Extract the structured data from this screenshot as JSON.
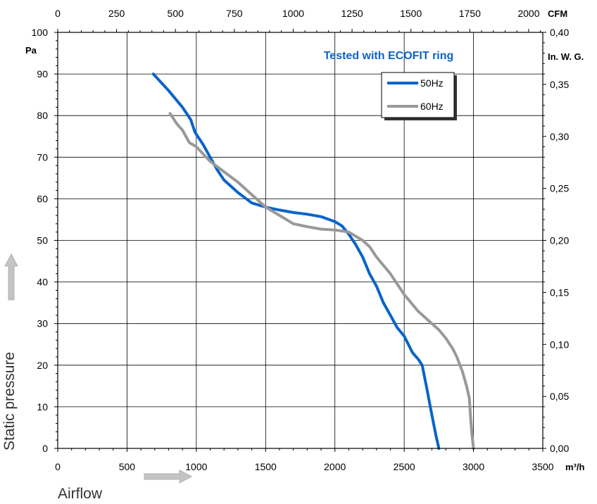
{
  "chart_data": {
    "type": "line",
    "annotation": "Tested with ECOFIT ring",
    "xlabel": "Airflow",
    "ylabel": "Static pressure",
    "x_unit": "m³/h",
    "y_unit": "Pa",
    "x2_unit": "CFM",
    "y2_unit": "In. W. G.",
    "xlim": [
      0,
      3500
    ],
    "ylim": [
      0,
      100
    ],
    "x2lim": [
      0,
      2060
    ],
    "y2lim": [
      0,
      0.4
    ],
    "x_ticks": [
      "0",
      "500",
      "1000",
      "1500",
      "2000",
      "2500",
      "3000",
      "3500"
    ],
    "y_ticks": [
      "0",
      "10",
      "20",
      "30",
      "40",
      "50",
      "60",
      "70",
      "80",
      "90",
      "100"
    ],
    "x2_ticks": [
      "0",
      "250",
      "500",
      "750",
      "1000",
      "1250",
      "1500",
      "1750",
      "2000"
    ],
    "y2_ticks": [
      "0,00",
      "0,05",
      "0,10",
      "0,15",
      "0,20",
      "0,25",
      "0,30",
      "0,35",
      "0,40"
    ],
    "grid": true,
    "legend_position": "top-right",
    "series": [
      {
        "name": "50Hz",
        "color": "#0a64c8",
        "points": [
          [
            690,
            90
          ],
          [
            800,
            86
          ],
          [
            900,
            82
          ],
          [
            960,
            79
          ],
          [
            990,
            76
          ],
          [
            1050,
            73
          ],
          [
            1100,
            70
          ],
          [
            1150,
            67
          ],
          [
            1200,
            64.5
          ],
          [
            1300,
            61.5
          ],
          [
            1400,
            59
          ],
          [
            1500,
            58
          ],
          [
            1600,
            57.3
          ],
          [
            1700,
            56.7
          ],
          [
            1800,
            56.3
          ],
          [
            1900,
            55.7
          ],
          [
            2000,
            54.5
          ],
          [
            2050,
            53.5
          ],
          [
            2100,
            51.5
          ],
          [
            2150,
            49
          ],
          [
            2200,
            46
          ],
          [
            2250,
            42
          ],
          [
            2300,
            39
          ],
          [
            2350,
            35
          ],
          [
            2400,
            32
          ],
          [
            2450,
            29
          ],
          [
            2500,
            27
          ],
          [
            2560,
            23
          ],
          [
            2600,
            21.5
          ],
          [
            2630,
            20
          ],
          [
            2660,
            15
          ],
          [
            2700,
            8
          ],
          [
            2730,
            3
          ],
          [
            2750,
            0
          ]
        ]
      },
      {
        "name": "60Hz",
        "color": "#999999",
        "points": [
          [
            810,
            80.5
          ],
          [
            860,
            78
          ],
          [
            900,
            76.5
          ],
          [
            950,
            73.5
          ],
          [
            1000,
            72.5
          ],
          [
            1100,
            69
          ],
          [
            1200,
            66.5
          ],
          [
            1300,
            64
          ],
          [
            1400,
            61
          ],
          [
            1500,
            58
          ],
          [
            1600,
            56
          ],
          [
            1700,
            54
          ],
          [
            1800,
            53.3
          ],
          [
            1900,
            52.7
          ],
          [
            2000,
            52.5
          ],
          [
            2100,
            52
          ],
          [
            2200,
            50
          ],
          [
            2250,
            48.5
          ],
          [
            2300,
            46
          ],
          [
            2350,
            44
          ],
          [
            2400,
            42
          ],
          [
            2450,
            39.5
          ],
          [
            2500,
            37
          ],
          [
            2600,
            33
          ],
          [
            2700,
            30
          ],
          [
            2750,
            28.5
          ],
          [
            2800,
            26.5
          ],
          [
            2850,
            24
          ],
          [
            2880,
            22
          ],
          [
            2920,
            18.5
          ],
          [
            2950,
            15
          ],
          [
            2970,
            12
          ],
          [
            2980,
            7
          ],
          [
            2990,
            3
          ],
          [
            3000,
            0
          ]
        ]
      }
    ]
  }
}
